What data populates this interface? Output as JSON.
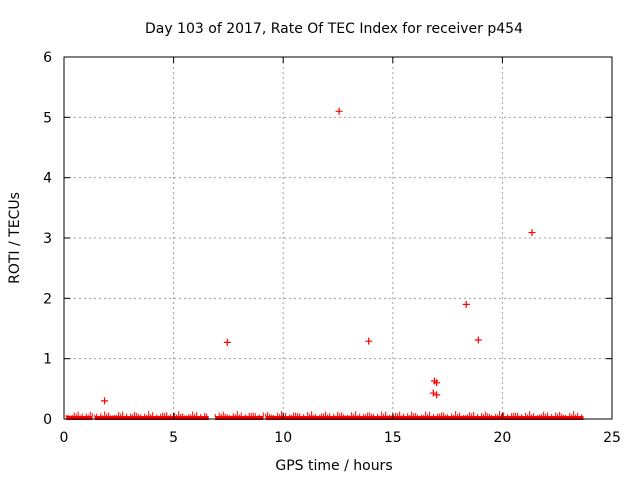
{
  "chart_data": {
    "type": "scatter",
    "title": "Day 103 of 2017, Rate Of TEC Index for receiver p454",
    "xlabel": "GPS time / hours",
    "ylabel": "ROTI / TECUs",
    "xlim": [
      0,
      25
    ],
    "ylim": [
      0,
      6
    ],
    "xticks": [
      0,
      5,
      10,
      15,
      20,
      25
    ],
    "yticks": [
      0,
      1,
      2,
      3,
      4,
      5,
      6
    ],
    "grid": true,
    "marker": "plus",
    "color": "#ff0000",
    "baseline_band": {
      "description_value_range": [
        0.0,
        0.1
      ],
      "segments": [
        [
          0.1,
          1.3
        ],
        [
          1.4,
          6.6
        ],
        [
          6.9,
          9.1
        ],
        [
          9.2,
          23.7
        ]
      ]
    },
    "points": [
      {
        "x": 1.85,
        "y": 0.3
      },
      {
        "x": 7.45,
        "y": 1.27
      },
      {
        "x": 12.55,
        "y": 5.1
      },
      {
        "x": 13.9,
        "y": 1.29
      },
      {
        "x": 16.9,
        "y": 0.63
      },
      {
        "x": 17.0,
        "y": 0.6
      },
      {
        "x": 16.85,
        "y": 0.43
      },
      {
        "x": 17.0,
        "y": 0.4
      },
      {
        "x": 18.35,
        "y": 1.9
      },
      {
        "x": 18.9,
        "y": 1.31
      },
      {
        "x": 21.35,
        "y": 3.09
      }
    ]
  }
}
